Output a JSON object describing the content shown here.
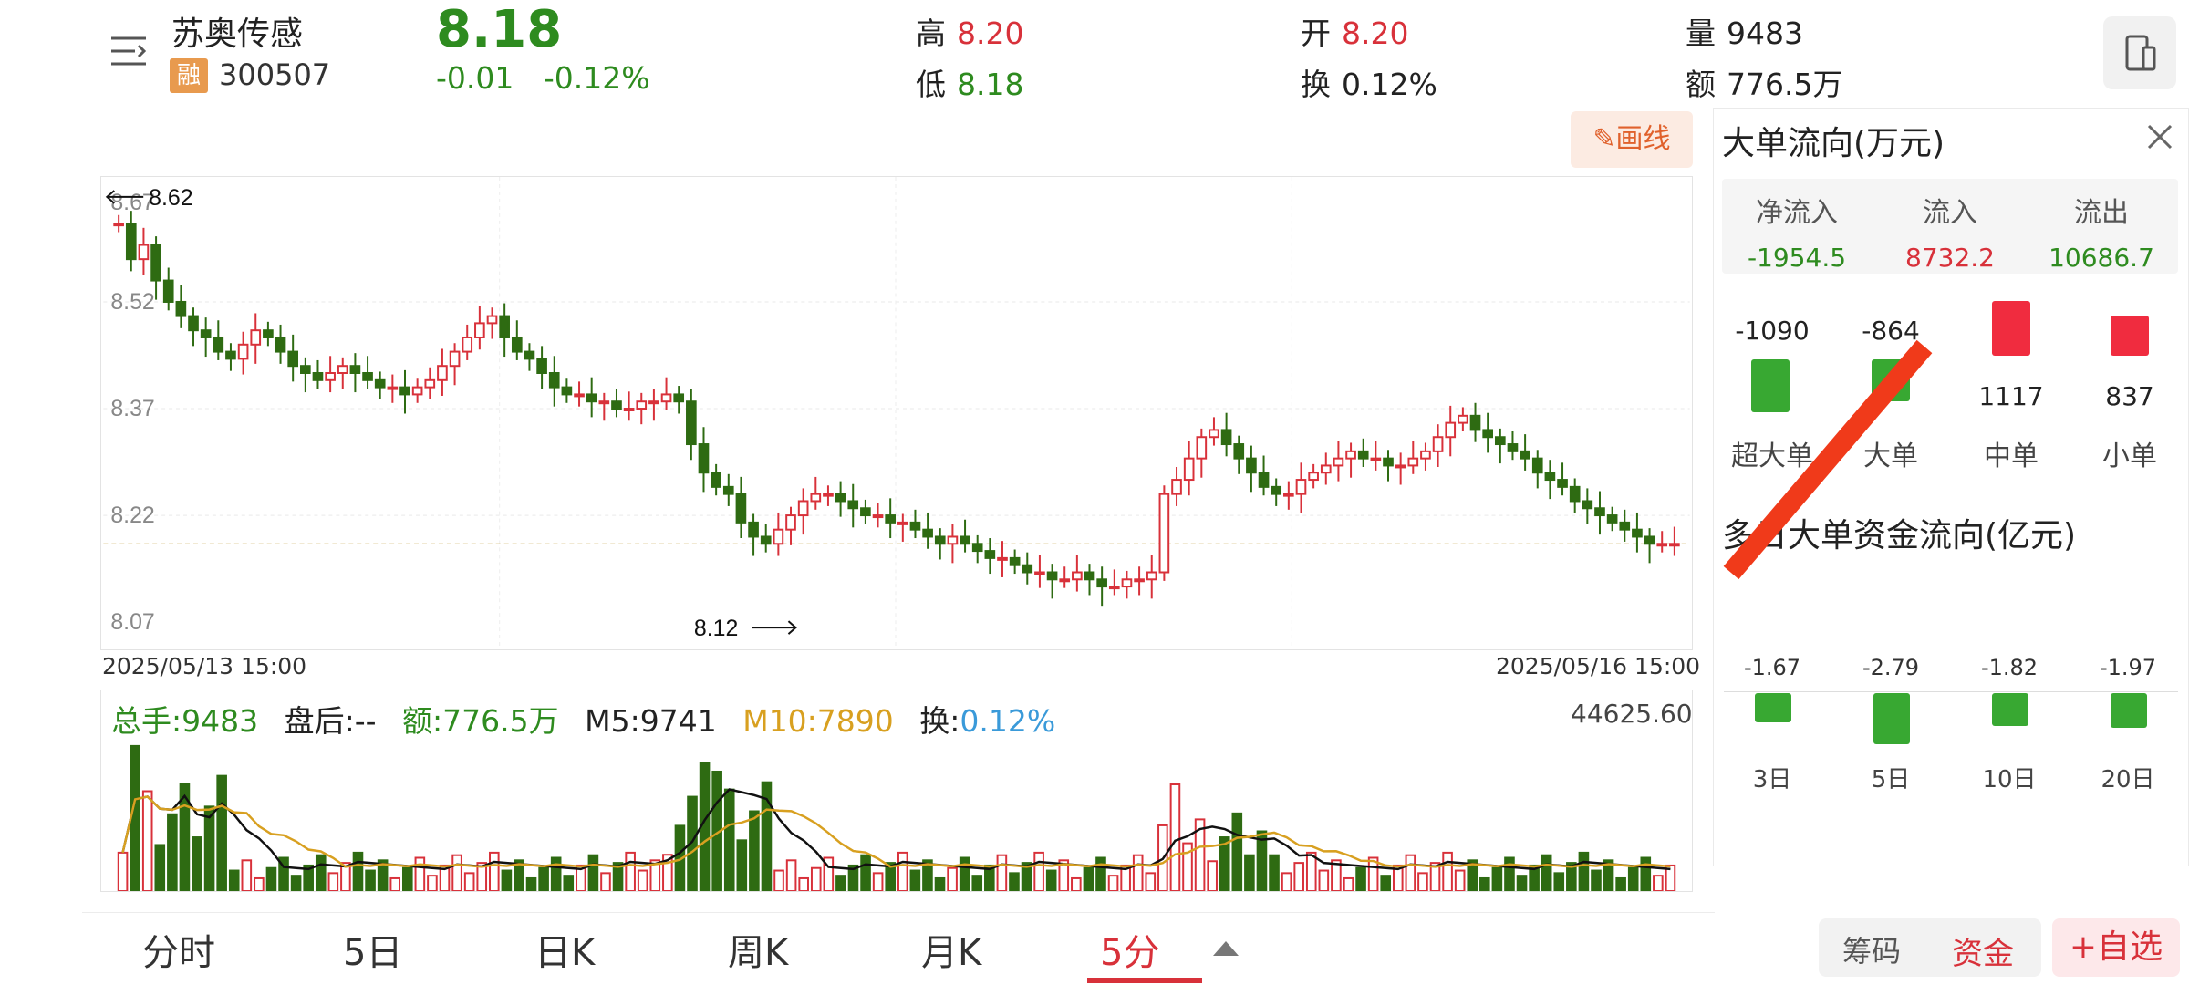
{
  "header": {
    "name": "苏奥传感",
    "badge": "融",
    "code": "300507",
    "price": "8.18",
    "change": "-0.01",
    "change_pct": "-0.12%",
    "high_label": "高",
    "high": "8.20",
    "low_label": "低",
    "low": "8.18",
    "open_label": "开",
    "open": "8.20",
    "turnover_label": "换",
    "turnover": "0.12%",
    "volume_label": "量",
    "volume": "9483",
    "amount_label": "额",
    "amount": "776.5万"
  },
  "toolbar": {
    "draw_label": "✎画线"
  },
  "kline": {
    "y_labels": [
      "8.67",
      "8.52",
      "8.37",
      "8.22",
      "8.07"
    ],
    "high_marker": "8.62",
    "low_marker": "8.12",
    "start_date": "2025/05/13 15:00",
    "end_date": "2025/05/16 15:00",
    "colors": {
      "up": "#d8313a",
      "down": "#2e6b12",
      "avg": "#c8a850"
    }
  },
  "volume_panel": {
    "total": "总手:9483",
    "after_hours": "盘后:--",
    "amount": "额:776.5万",
    "m5": "M5:9741",
    "m10": "M10:7890",
    "turn_label": "换:",
    "turn": "0.12%",
    "max": "44625.60"
  },
  "tabs": [
    {
      "label": "分时"
    },
    {
      "label": "5日"
    },
    {
      "label": "日K"
    },
    {
      "label": "周K"
    },
    {
      "label": "月K"
    },
    {
      "label": "5分",
      "active": true
    }
  ],
  "panel": {
    "title": "大单流向(万元)",
    "summary": [
      {
        "label": "净流入",
        "value": "-1954.5",
        "color": "#2e8b1f"
      },
      {
        "label": "流入",
        "value": "8732.2",
        "color": "#d8313a"
      },
      {
        "label": "流出",
        "value": "10686.7",
        "color": "#2e8b1f"
      }
    ],
    "flows": [
      {
        "label": "超大单",
        "value": "-1090"
      },
      {
        "label": "大单",
        "value": "-864"
      },
      {
        "label": "中单",
        "value": "1117"
      },
      {
        "label": "小单",
        "value": "837"
      }
    ],
    "multi_title": "多日大单资金流向(亿元)",
    "days": [
      {
        "label": "3日",
        "value": "-1.67"
      },
      {
        "label": "5日",
        "value": "-2.79"
      },
      {
        "label": "10日",
        "value": "-1.82"
      },
      {
        "label": "20日",
        "value": "-1.97"
      }
    ]
  },
  "bottom_buttons": {
    "chips": "筹码",
    "capital": "资金",
    "watchlist": "+自选"
  }
}
